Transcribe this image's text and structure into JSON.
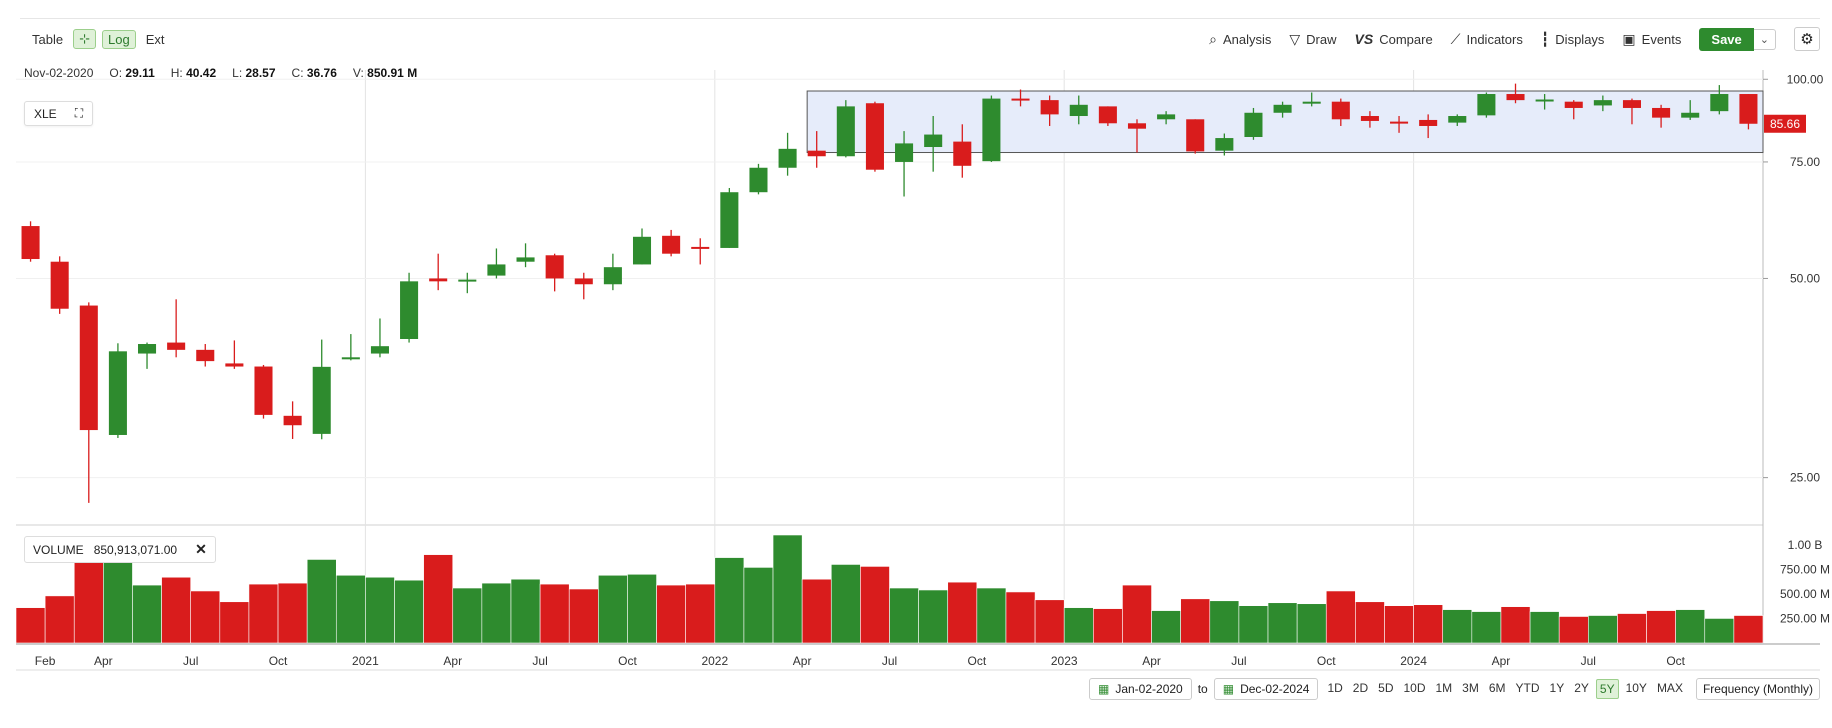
{
  "toolbar": {
    "table": "Table",
    "log": "Log",
    "ext": "Ext",
    "analysis": "Analysis",
    "draw": "Draw",
    "compare": "Compare",
    "indicators": "Indicators",
    "displays": "Displays",
    "events": "Events",
    "save": "Save"
  },
  "ohlc": {
    "date": "Nov-02-2020",
    "o_label": "O:",
    "o": "29.11",
    "h_label": "H:",
    "h": "40.42",
    "l_label": "L:",
    "l": "28.57",
    "c_label": "C:",
    "c": "36.76",
    "v_label": "V:",
    "v": "850.91 M"
  },
  "symbol": "XLE",
  "volume_panel": {
    "label": "VOLUME",
    "value": "850,913,071.00"
  },
  "range": {
    "from": "Jan-02-2020",
    "to_label": "to",
    "to": "Dec-02-2024",
    "periods": [
      "1D",
      "2D",
      "5D",
      "10D",
      "1M",
      "3M",
      "6M",
      "YTD",
      "1Y",
      "2Y",
      "5Y",
      "10Y",
      "MAX"
    ],
    "active": "5Y",
    "frequency": "Frequency (Monthly)"
  },
  "colors": {
    "up": "#2e8b2e",
    "down": "#d91c1c",
    "band": "#e6ecfa"
  },
  "chart_data": {
    "type": "candlestick",
    "symbol": "XLE",
    "log_scale": true,
    "y_ticks": [
      "100.00",
      "75.00",
      "50.00",
      "25.00"
    ],
    "y_tick_values": [
      100,
      75,
      50,
      25
    ],
    "volume_ticks": [
      "1.00 B",
      "750.00 M",
      "500.00 M",
      "250.00 M"
    ],
    "volume_tick_values": [
      1000,
      750,
      500,
      250
    ],
    "x_labels": [
      "Feb",
      "Apr",
      "Jul",
      "Oct",
      "2021",
      "Apr",
      "Jul",
      "Oct",
      "2022",
      "Apr",
      "Jul",
      "Oct",
      "2023",
      "Apr",
      "Jul",
      "Oct",
      "2024",
      "Apr",
      "Jul",
      "Oct"
    ],
    "x_label_months": [
      1,
      3,
      6,
      9,
      12,
      15,
      18,
      21,
      24,
      27,
      30,
      33,
      36,
      39,
      42,
      45,
      48,
      51,
      54,
      57
    ],
    "last_price": "85.66",
    "band": {
      "low": 77.5,
      "high": 96
    },
    "candles": [
      {
        "date": "Jan-2020",
        "o": 60,
        "h": 61,
        "l": 53,
        "c": 53.5,
        "v": 360
      },
      {
        "date": "Feb-2020",
        "o": 53,
        "h": 54,
        "l": 44.2,
        "c": 45,
        "v": 480
      },
      {
        "date": "Mar-2020",
        "o": 45.5,
        "h": 46,
        "l": 22.9,
        "c": 29.5,
        "v": 1000
      },
      {
        "date": "Apr-2020",
        "o": 29,
        "h": 39.9,
        "l": 28.7,
        "c": 38.8,
        "v": 980
      },
      {
        "date": "May-2020",
        "o": 38.5,
        "h": 40,
        "l": 36.5,
        "c": 39.8,
        "v": 590
      },
      {
        "date": "Jun-2020",
        "o": 40,
        "h": 46.5,
        "l": 38,
        "c": 39,
        "v": 670
      },
      {
        "date": "Jul-2020",
        "o": 39,
        "h": 39.8,
        "l": 36.8,
        "c": 37.5,
        "v": 530
      },
      {
        "date": "Aug-2020",
        "o": 37.2,
        "h": 40.3,
        "l": 36.5,
        "c": 36.8,
        "v": 420
      },
      {
        "date": "Sep-2020",
        "o": 36.8,
        "h": 37,
        "l": 30.7,
        "c": 31.1,
        "v": 600
      },
      {
        "date": "Oct-2020",
        "o": 31,
        "h": 32.6,
        "l": 28.6,
        "c": 30,
        "v": 610
      },
      {
        "date": "Nov-2020",
        "o": 29.11,
        "h": 40.42,
        "l": 28.57,
        "c": 36.76,
        "v": 850.91
      },
      {
        "date": "Dec-2020",
        "o": 38,
        "h": 41.2,
        "l": 37.6,
        "c": 38,
        "v": 690
      },
      {
        "date": "Jan-2021",
        "o": 38.5,
        "h": 43.5,
        "l": 38,
        "c": 39.5,
        "v": 670
      },
      {
        "date": "Feb-2021",
        "o": 40.5,
        "h": 51,
        "l": 40,
        "c": 49.5,
        "v": 640
      },
      {
        "date": "Mar-2021",
        "o": 50,
        "h": 54.5,
        "l": 48,
        "c": 49.5,
        "v": 900
      },
      {
        "date": "Apr-2021",
        "o": 49.5,
        "h": 51,
        "l": 47.5,
        "c": 49.8,
        "v": 560
      },
      {
        "date": "May-2021",
        "o": 50.5,
        "h": 55.5,
        "l": 50,
        "c": 52.5,
        "v": 610
      },
      {
        "date": "Jun-2021",
        "o": 53,
        "h": 56.5,
        "l": 52,
        "c": 53.8,
        "v": 650
      },
      {
        "date": "Jul-2021",
        "o": 54.2,
        "h": 54.5,
        "l": 47.8,
        "c": 50,
        "v": 600
      },
      {
        "date": "Aug-2021",
        "o": 50,
        "h": 51,
        "l": 46.5,
        "c": 49,
        "v": 550
      },
      {
        "date": "Sep-2021",
        "o": 49,
        "h": 54.5,
        "l": 48,
        "c": 52,
        "v": 690
      },
      {
        "date": "Oct-2021",
        "o": 52.5,
        "h": 59.5,
        "l": 52.5,
        "c": 57.8,
        "v": 700
      },
      {
        "date": "Nov-2021",
        "o": 58,
        "h": 59.2,
        "l": 54,
        "c": 54.5,
        "v": 590
      },
      {
        "date": "Dec-2021",
        "o": 55.8,
        "h": 57.5,
        "l": 52.5,
        "c": 55.5,
        "v": 600
      },
      {
        "date": "Jan-2022",
        "o": 55.6,
        "h": 68.5,
        "l": 55.6,
        "c": 67.5,
        "v": 870
      },
      {
        "date": "Feb-2022",
        "o": 67.5,
        "h": 74.5,
        "l": 67,
        "c": 73.5,
        "v": 770
      },
      {
        "date": "Mar-2022",
        "o": 73.5,
        "h": 83,
        "l": 71.5,
        "c": 78.5,
        "v": 1100
      },
      {
        "date": "Apr-2022",
        "o": 78,
        "h": 83.5,
        "l": 73.5,
        "c": 76.5,
        "v": 650
      },
      {
        "date": "May-2022",
        "o": 76.5,
        "h": 93,
        "l": 76.2,
        "c": 91,
        "v": 800
      },
      {
        "date": "Jun-2022",
        "o": 92,
        "h": 92.5,
        "l": 72.5,
        "c": 73,
        "v": 780
      },
      {
        "date": "Jul-2022",
        "o": 75,
        "h": 83.5,
        "l": 66.5,
        "c": 80,
        "v": 560
      },
      {
        "date": "Aug-2022",
        "o": 79,
        "h": 88,
        "l": 72.5,
        "c": 82.5,
        "v": 540
      },
      {
        "date": "Sep-2022",
        "o": 80.5,
        "h": 85.5,
        "l": 71,
        "c": 74,
        "v": 620
      },
      {
        "date": "Oct-2022",
        "o": 75.2,
        "h": 94.5,
        "l": 75,
        "c": 93.5,
        "v": 560
      },
      {
        "date": "Nov-2022",
        "o": 93.5,
        "h": 96.5,
        "l": 91,
        "c": 93,
        "v": 520
      },
      {
        "date": "Dec-2022",
        "o": 93,
        "h": 94.5,
        "l": 85,
        "c": 88.5,
        "v": 440
      },
      {
        "date": "Jan-2023",
        "o": 88,
        "h": 94.5,
        "l": 85.5,
        "c": 91.5,
        "v": 360
      },
      {
        "date": "Feb-2023",
        "o": 91,
        "h": 91,
        "l": 85,
        "c": 85.8,
        "v": 350
      },
      {
        "date": "Mar-2023",
        "o": 85.8,
        "h": 87,
        "l": 77.5,
        "c": 84.2,
        "v": 590
      },
      {
        "date": "Apr-2023",
        "o": 87,
        "h": 89.5,
        "l": 85.5,
        "c": 88.5,
        "v": 330
      },
      {
        "date": "May-2023",
        "o": 87,
        "h": 87,
        "l": 77.2,
        "c": 77.8,
        "v": 450
      },
      {
        "date": "Jun-2023",
        "o": 78,
        "h": 82.8,
        "l": 76.7,
        "c": 81.5,
        "v": 430
      },
      {
        "date": "Jul-2023",
        "o": 81.8,
        "h": 90.5,
        "l": 81,
        "c": 89,
        "v": 380
      },
      {
        "date": "Aug-2023",
        "o": 89,
        "h": 92.5,
        "l": 87.5,
        "c": 91.5,
        "v": 410
      },
      {
        "date": "Sep-2023",
        "o": 92,
        "h": 95.5,
        "l": 91,
        "c": 92.5,
        "v": 400
      },
      {
        "date": "Oct-2023",
        "o": 92.5,
        "h": 93.5,
        "l": 85,
        "c": 87,
        "v": 530
      },
      {
        "date": "Nov-2023",
        "o": 88,
        "h": 89.5,
        "l": 84.5,
        "c": 86.5,
        "v": 420
      },
      {
        "date": "Dec-2023",
        "o": 86.3,
        "h": 88,
        "l": 83,
        "c": 86,
        "v": 380
      },
      {
        "date": "Jan-2024",
        "o": 86.8,
        "h": 88.5,
        "l": 81.5,
        "c": 85,
        "v": 390
      },
      {
        "date": "Feb-2024",
        "o": 86,
        "h": 88.5,
        "l": 85,
        "c": 88,
        "v": 340
      },
      {
        "date": "Mar-2024",
        "o": 88.2,
        "h": 95.5,
        "l": 87.5,
        "c": 95,
        "v": 320
      },
      {
        "date": "Apr-2024",
        "o": 95,
        "h": 98.5,
        "l": 92,
        "c": 93,
        "v": 370
      },
      {
        "date": "May-2024",
        "o": 93,
        "h": 95,
        "l": 90,
        "c": 93.2,
        "v": 320
      },
      {
        "date": "Jun-2024",
        "o": 92.5,
        "h": 93,
        "l": 87,
        "c": 90.5,
        "v": 270
      },
      {
        "date": "Jul-2024",
        "o": 91.3,
        "h": 94.5,
        "l": 89.5,
        "c": 93,
        "v": 280
      },
      {
        "date": "Aug-2024",
        "o": 93,
        "h": 93.5,
        "l": 85.5,
        "c": 90.5,
        "v": 300
      },
      {
        "date": "Sep-2024",
        "o": 90.5,
        "h": 91.5,
        "l": 84.5,
        "c": 87.5,
        "v": 330
      },
      {
        "date": "Oct-2024",
        "o": 87.5,
        "h": 93,
        "l": 86.8,
        "c": 89,
        "v": 340
      },
      {
        "date": "Nov-2024",
        "o": 89.5,
        "h": 98,
        "l": 88.5,
        "c": 95,
        "v": 250
      },
      {
        "date": "Dec-2024",
        "o": 95,
        "h": 95,
        "l": 84,
        "c": 85.66,
        "v": 280
      }
    ]
  }
}
